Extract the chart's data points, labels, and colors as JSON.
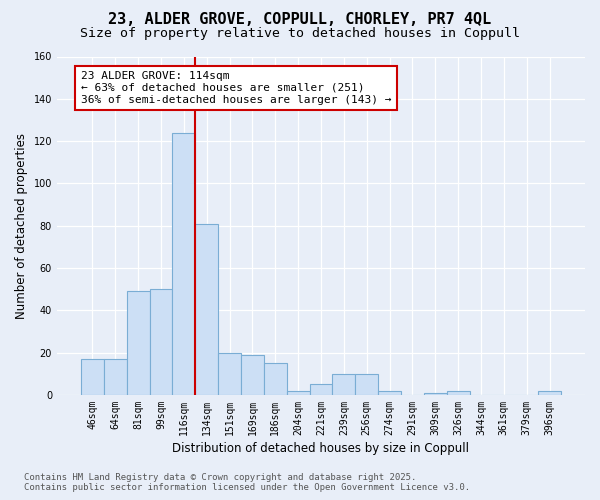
{
  "title_line1": "23, ALDER GROVE, COPPULL, CHORLEY, PR7 4QL",
  "title_line2": "Size of property relative to detached houses in Coppull",
  "xlabel": "Distribution of detached houses by size in Coppull",
  "ylabel": "Number of detached properties",
  "bar_color": "#ccdff5",
  "bar_edge_color": "#7aadd4",
  "background_color": "#e8eef8",
  "grid_color": "#ffffff",
  "categories": [
    "46sqm",
    "64sqm",
    "81sqm",
    "99sqm",
    "116sqm",
    "134sqm",
    "151sqm",
    "169sqm",
    "186sqm",
    "204sqm",
    "221sqm",
    "239sqm",
    "256sqm",
    "274sqm",
    "291sqm",
    "309sqm",
    "326sqm",
    "344sqm",
    "361sqm",
    "379sqm",
    "396sqm"
  ],
  "bar_values": [
    17,
    17,
    49,
    50,
    124,
    81,
    20,
    19,
    15,
    2,
    5,
    10,
    10,
    2,
    0,
    1,
    2,
    0,
    0,
    0,
    2
  ],
  "ylim": [
    0,
    160
  ],
  "yticks": [
    0,
    20,
    40,
    60,
    80,
    100,
    120,
    140,
    160
  ],
  "vline_x": 4.5,
  "vline_color": "#cc0000",
  "ann_line1": "23 ALDER GROVE: 114sqm",
  "ann_line2": "← 63% of detached houses are smaller (251)",
  "ann_line3": "36% of semi-detached houses are larger (143) →",
  "annotation_box_color": "#ffffff",
  "annotation_box_edge": "#cc0000",
  "footer_line1": "Contains HM Land Registry data © Crown copyright and database right 2025.",
  "footer_line2": "Contains public sector information licensed under the Open Government Licence v3.0.",
  "title_fontsize": 11,
  "subtitle_fontsize": 9.5,
  "label_fontsize": 8.5,
  "tick_fontsize": 7,
  "annotation_fontsize": 8,
  "footer_fontsize": 6.5
}
